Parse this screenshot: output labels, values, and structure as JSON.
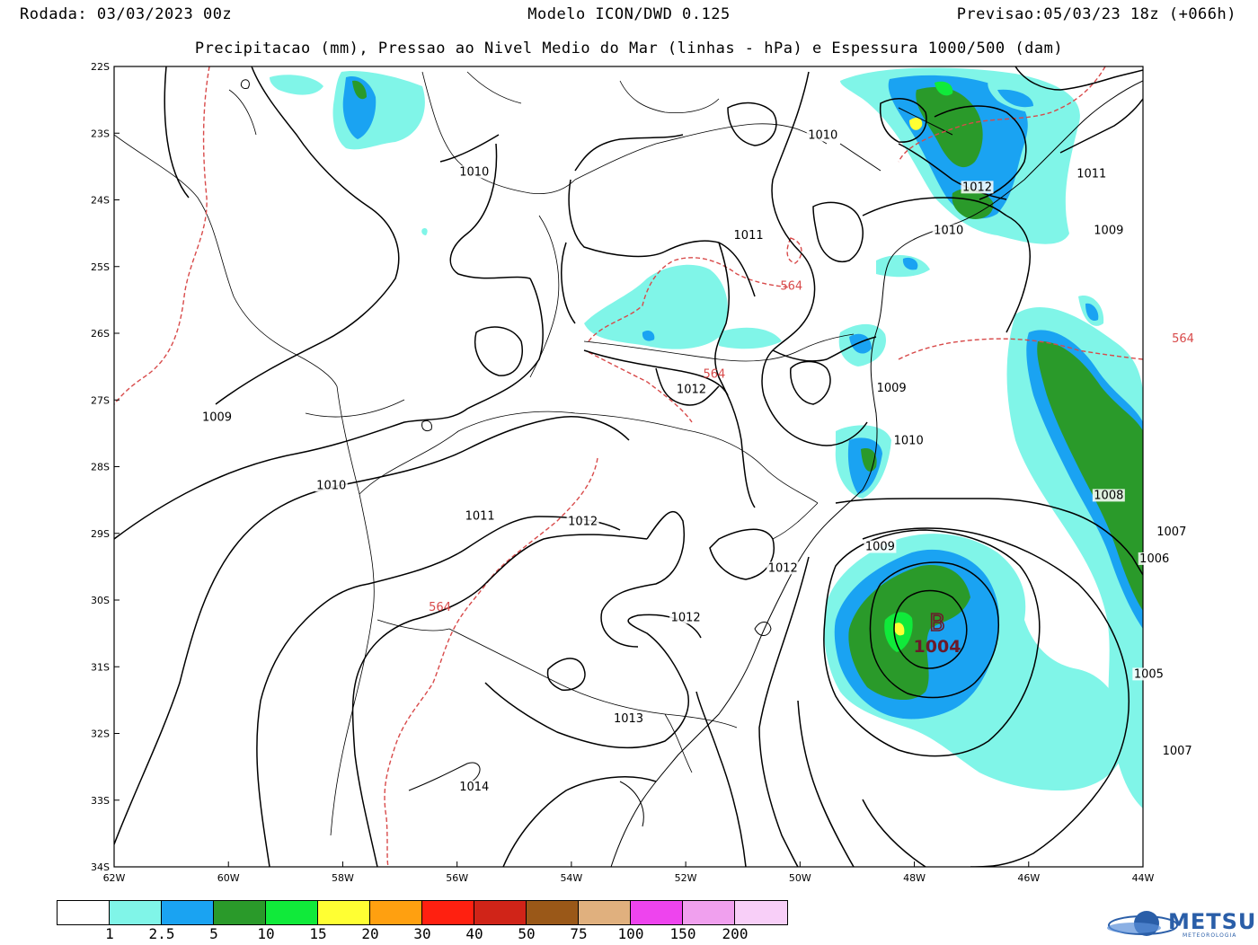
{
  "header": {
    "run": "Rodada: 03/03/2023 00z",
    "model": "Modelo ICON/DWD 0.125",
    "forecast": "Previsao:05/03/23 18z (+066h)",
    "subtitle": "Precipitacao (mm), Pressao ao Nivel Medio do Mar (linhas - hPa) e Espessura 1000/500 (dam)"
  },
  "map": {
    "lon_range": [
      -62,
      -44
    ],
    "lat_range": [
      -34,
      -22
    ],
    "lon_ticks": [
      "62W",
      "60W",
      "58W",
      "56W",
      "54W",
      "52W",
      "50W",
      "48W",
      "46W",
      "44W"
    ],
    "lat_ticks": [
      "22S",
      "23S",
      "24S",
      "25S",
      "26S",
      "27S",
      "28S",
      "29S",
      "30S",
      "31S",
      "32S",
      "33S",
      "34S"
    ],
    "low_center": {
      "letter": "B",
      "value": "1004",
      "lon": -47.6,
      "lat": -30.35
    },
    "isobar_labels": [
      {
        "text": "1010",
        "lon": -49.6,
        "lat": -23.07
      },
      {
        "text": "1010",
        "lon": -55.7,
        "lat": -23.62
      },
      {
        "text": "1011",
        "lon": -50.9,
        "lat": -24.57
      },
      {
        "text": "1012",
        "lon": -46.9,
        "lat": -23.85
      },
      {
        "text": "1011",
        "lon": -44.9,
        "lat": -23.65
      },
      {
        "text": "1010",
        "lon": -47.4,
        "lat": -24.5
      },
      {
        "text": "1009",
        "lon": -44.6,
        "lat": -24.5
      },
      {
        "text": "1012",
        "lon": -51.9,
        "lat": -26.88
      },
      {
        "text": "1009",
        "lon": -48.4,
        "lat": -26.86
      },
      {
        "text": "1009",
        "lon": -60.2,
        "lat": -27.3
      },
      {
        "text": "1010",
        "lon": -58.2,
        "lat": -28.32
      },
      {
        "text": "1010",
        "lon": -48.1,
        "lat": -27.65
      },
      {
        "text": "1008",
        "lon": -44.6,
        "lat": -28.47
      },
      {
        "text": "1011",
        "lon": -55.6,
        "lat": -28.78
      },
      {
        "text": "1012",
        "lon": -53.8,
        "lat": -28.86
      },
      {
        "text": "1007",
        "lon": -43.5,
        "lat": -29.02
      },
      {
        "text": "1009",
        "lon": -48.6,
        "lat": -29.24
      },
      {
        "text": "1012",
        "lon": -50.3,
        "lat": -29.56
      },
      {
        "text": "1006",
        "lon": -43.8,
        "lat": -29.42
      },
      {
        "text": "1012",
        "lon": -52.0,
        "lat": -30.3
      },
      {
        "text": "1005",
        "lon": -43.9,
        "lat": -31.15
      },
      {
        "text": "1013",
        "lon": -53.0,
        "lat": -31.82
      },
      {
        "text": "1007",
        "lon": -43.4,
        "lat": -32.3
      },
      {
        "text": "1014",
        "lon": -55.7,
        "lat": -32.84
      }
    ],
    "thickness_labels": [
      {
        "text": "564",
        "lon": -50.15,
        "lat": -25.33
      },
      {
        "text": "564",
        "lon": -43.3,
        "lat": -26.12
      },
      {
        "text": "564",
        "lon": -51.5,
        "lat": -26.65
      },
      {
        "text": "564",
        "lon": -56.3,
        "lat": -30.15
      }
    ]
  },
  "legend": {
    "colors": [
      "#ffffff",
      "#80f5e8",
      "#1aa3f2",
      "#2a9a2a",
      "#10ea3a",
      "#ffff33",
      "#ffa010",
      "#ff2010",
      "#d02418",
      "#9a5818",
      "#e0b07e",
      "#ee44ee",
      "#f0a0ee",
      "#f8cff8"
    ],
    "labels": [
      "1",
      "2.5",
      "5",
      "10",
      "15",
      "20",
      "30",
      "40",
      "50",
      "75",
      "100",
      "150",
      "200"
    ]
  },
  "logo": {
    "text": "METSUL",
    "sub": "METEOROLOGIA"
  }
}
